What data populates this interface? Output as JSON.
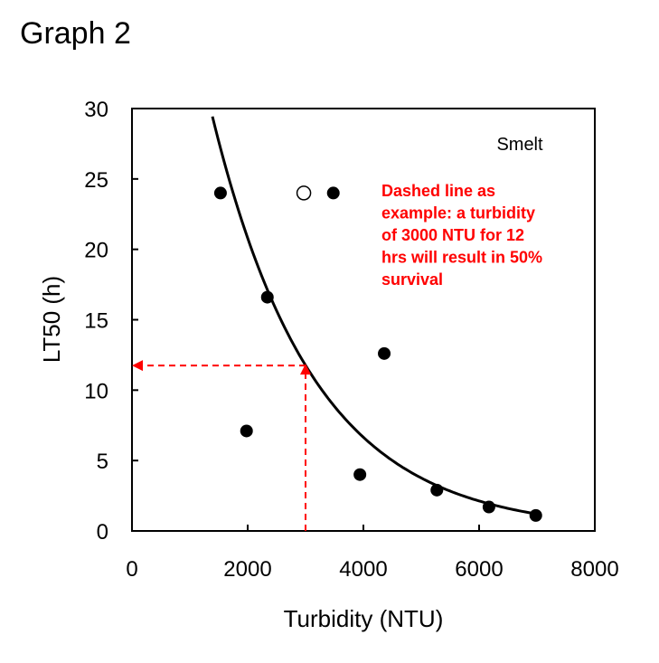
{
  "title": "Graph 2",
  "chart_data": {
    "type": "scatter",
    "xlabel": "Turbidity (NTU)",
    "ylabel": "LT50 (h)",
    "xlim": [
      0,
      8000
    ],
    "ylim": [
      0,
      30
    ],
    "xticks": [
      0,
      2000,
      4000,
      6000,
      8000
    ],
    "yticks": [
      0,
      5,
      10,
      15,
      20,
      25,
      30
    ],
    "grid": false,
    "species_label": "Smelt",
    "filled_points": [
      {
        "x": 1530,
        "y": 24
      },
      {
        "x": 2340,
        "y": 16.6
      },
      {
        "x": 1980,
        "y": 7.1
      },
      {
        "x": 3480,
        "y": 24
      },
      {
        "x": 4360,
        "y": 12.6
      },
      {
        "x": 3940,
        "y": 4.0
      },
      {
        "x": 5270,
        "y": 2.9
      },
      {
        "x": 6170,
        "y": 1.7
      },
      {
        "x": 6980,
        "y": 1.1
      }
    ],
    "open_points": [
      {
        "x": 2970,
        "y": 24
      }
    ],
    "fit_curve": {
      "form": "y = a*exp(-b*x)",
      "a": 65,
      "b": 0.00057,
      "x_range": [
        1390,
        7000
      ]
    },
    "example_line": {
      "x": 3000,
      "y": 11.75,
      "color": "#ff0000"
    },
    "annotation": [
      "Dashed line as",
      "example: a turbidity",
      "of 3000 NTU for 12",
      "hrs will result in 50%",
      "survival"
    ],
    "annotation_color": "#ff0000"
  }
}
